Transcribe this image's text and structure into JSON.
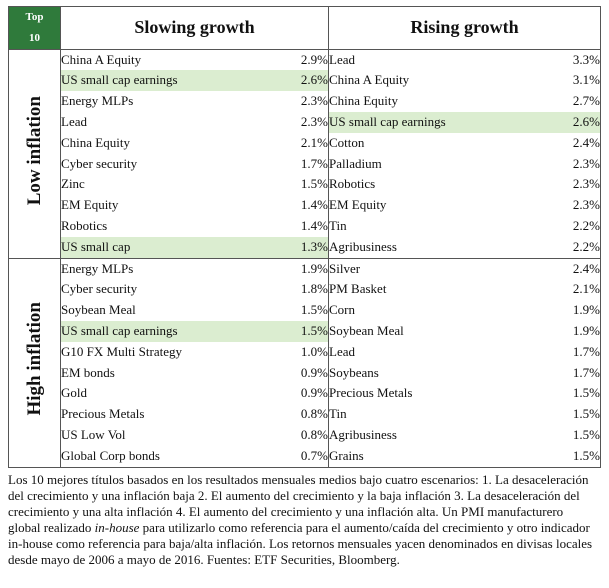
{
  "top_label_line1": "Top",
  "top_label_line2": "10",
  "headers": {
    "slowing": "Slowing growth",
    "rising": "Rising growth"
  },
  "groups": [
    {
      "label": "Low inflation",
      "rows": [
        {
          "s_name": "China A Equity",
          "s_val": "2.9%",
          "s_hl": false,
          "r_name": "Lead",
          "r_val": "3.3%",
          "r_hl": false
        },
        {
          "s_name": "US small cap earnings",
          "s_val": "2.6%",
          "s_hl": true,
          "r_name": "China A Equity",
          "r_val": "3.1%",
          "r_hl": false
        },
        {
          "s_name": "Energy MLPs",
          "s_val": "2.3%",
          "s_hl": false,
          "r_name": "China Equity",
          "r_val": "2.7%",
          "r_hl": false
        },
        {
          "s_name": "Lead",
          "s_val": "2.3%",
          "s_hl": false,
          "r_name": "US small cap earnings",
          "r_val": "2.6%",
          "r_hl": true
        },
        {
          "s_name": "China Equity",
          "s_val": "2.1%",
          "s_hl": false,
          "r_name": "Cotton",
          "r_val": "2.4%",
          "r_hl": false
        },
        {
          "s_name": "Cyber security",
          "s_val": "1.7%",
          "s_hl": false,
          "r_name": "Palladium",
          "r_val": "2.3%",
          "r_hl": false
        },
        {
          "s_name": "Zinc",
          "s_val": "1.5%",
          "s_hl": false,
          "r_name": "Robotics",
          "r_val": "2.3%",
          "r_hl": false
        },
        {
          "s_name": "EM Equity",
          "s_val": "1.4%",
          "s_hl": false,
          "r_name": "EM Equity",
          "r_val": "2.3%",
          "r_hl": false
        },
        {
          "s_name": "Robotics",
          "s_val": "1.4%",
          "s_hl": false,
          "r_name": "Tin",
          "r_val": "2.2%",
          "r_hl": false
        },
        {
          "s_name": "US small cap",
          "s_val": "1.3%",
          "s_hl": true,
          "r_name": "Agribusiness",
          "r_val": "2.2%",
          "r_hl": false
        }
      ]
    },
    {
      "label": "High inflation",
      "rows": [
        {
          "s_name": "Energy MLPs",
          "s_val": "1.9%",
          "s_hl": false,
          "r_name": "Silver",
          "r_val": "2.4%",
          "r_hl": false
        },
        {
          "s_name": "Cyber security",
          "s_val": "1.8%",
          "s_hl": false,
          "r_name": "PM Basket",
          "r_val": "2.1%",
          "r_hl": false
        },
        {
          "s_name": "Soybean Meal",
          "s_val": "1.5%",
          "s_hl": false,
          "r_name": "Corn",
          "r_val": "1.9%",
          "r_hl": false
        },
        {
          "s_name": "US small cap earnings",
          "s_val": "1.5%",
          "s_hl": true,
          "r_name": "Soybean Meal",
          "r_val": "1.9%",
          "r_hl": false
        },
        {
          "s_name": "G10 FX Multi Strategy",
          "s_val": "1.0%",
          "s_hl": false,
          "r_name": "Lead",
          "r_val": "1.7%",
          "r_hl": false
        },
        {
          "s_name": "EM bonds",
          "s_val": "0.9%",
          "s_hl": false,
          "r_name": "Soybeans",
          "r_val": "1.7%",
          "r_hl": false
        },
        {
          "s_name": "Gold",
          "s_val": "0.9%",
          "s_hl": false,
          "r_name": "Precious Metals",
          "r_val": "1.5%",
          "r_hl": false
        },
        {
          "s_name": "Precious Metals",
          "s_val": "0.8%",
          "s_hl": false,
          "r_name": "Tin",
          "r_val": "1.5%",
          "r_hl": false
        },
        {
          "s_name": "US Low Vol",
          "s_val": "0.8%",
          "s_hl": false,
          "r_name": "Agribusiness",
          "r_val": "1.5%",
          "r_hl": false
        },
        {
          "s_name": "Global Corp bonds",
          "s_val": "0.7%",
          "s_hl": false,
          "r_name": "Grains",
          "r_val": "1.5%",
          "r_hl": false
        }
      ]
    }
  ],
  "footer": {
    "part1": "Los 10 mejores títulos basados en los resultados mensuales medios bajo cuatro escenarios: 1. La desaceleración del crecimiento y una inflación baja 2. El aumento del crecimiento y la baja inflación 3. La desaceleración del crecimiento y una alta inflación 4. El aumento del crecimiento y una inflación alta. Un PMI manufacturero global realizado ",
    "emph": "in-house",
    "part2": " para utilizarlo como referencia para el aumento/caída del crecimiento y otro indicador in-house como referencia para baja/alta inflación. Los retornos mensuales yacen denominados en divisas locales desde mayo de 2006 a mayo de 2016. Fuentes: ETF Securities, Bloomberg."
  },
  "colors": {
    "header_green": "#2f7a3b",
    "highlight": "#dbedd0"
  }
}
